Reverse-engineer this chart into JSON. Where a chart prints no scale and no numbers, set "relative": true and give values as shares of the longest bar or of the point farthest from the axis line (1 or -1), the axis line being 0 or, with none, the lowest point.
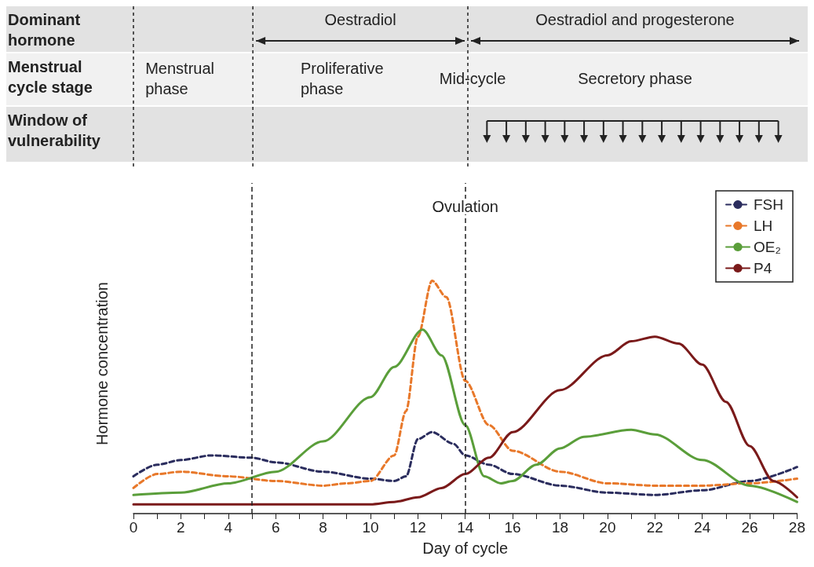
{
  "chart_data": {
    "type": "line",
    "relative": true,
    "xlabel": "Day of cycle",
    "ylabel": "Hormone concentration",
    "xlim": [
      0,
      28
    ],
    "xticks": [
      0,
      {
        "value": 1,
        "label": null
      },
      2,
      {
        "value": 3,
        "label": null
      },
      4,
      {
        "value": 5,
        "label": null
      },
      6,
      {
        "value": 7,
        "label": null
      },
      8,
      {
        "value": 9,
        "label": null
      },
      10,
      {
        "value": 11,
        "label": null
      },
      12,
      {
        "value": 13,
        "label": null
      },
      14,
      {
        "value": 15,
        "label": null
      },
      16,
      {
        "value": 17,
        "label": null
      },
      18,
      {
        "value": 19,
        "label": null
      },
      20,
      {
        "value": 21,
        "label": null
      },
      22,
      {
        "value": 23,
        "label": null
      },
      24,
      {
        "value": 25,
        "label": null
      },
      26,
      {
        "value": 27,
        "label": null
      },
      28
    ],
    "grid": false,
    "legend": "top right",
    "marker": "none",
    "ref_lines": [
      {
        "axis": "x",
        "value": 5,
        "label": null,
        "color": "#222222",
        "line_style": "dashed"
      },
      {
        "axis": "x",
        "value": 14,
        "label": "Ovulation",
        "color": "#222222",
        "line_style": "dashed"
      }
    ],
    "annotations": [
      "Dominant hormone",
      "Oestradiol",
      "Oestradiol and progesterone",
      "Menstrual cycle stage",
      "Menstrual phase",
      "Proliferative phase",
      "Mid-cycle",
      "Secretory phase",
      "Window of vulnerability"
    ],
    "series": [
      {
        "name": "FSH",
        "color": "#2b2d5e",
        "line_style": "dashed",
        "x": [
          0,
          1,
          2,
          3.3,
          5,
          6,
          8,
          10,
          11,
          11.5,
          12,
          12.6,
          13.5,
          14,
          15,
          16,
          18,
          20,
          22,
          24,
          26,
          28
        ],
        "values": [
          0.16,
          0.21,
          0.23,
          0.25,
          0.24,
          0.22,
          0.18,
          0.15,
          0.14,
          0.16,
          0.32,
          0.35,
          0.3,
          0.25,
          0.21,
          0.17,
          0.12,
          0.09,
          0.08,
          0.1,
          0.14,
          0.2
        ]
      },
      {
        "name": "LH",
        "color": "#e8782a",
        "line_style": "dashed",
        "x": [
          0,
          1,
          2,
          4,
          6,
          8,
          9,
          10,
          11,
          11.5,
          12,
          12.6,
          13.2,
          14,
          15,
          16,
          18,
          20,
          22,
          24,
          26,
          28
        ],
        "values": [
          0.11,
          0.17,
          0.18,
          0.16,
          0.14,
          0.12,
          0.13,
          0.14,
          0.25,
          0.44,
          0.76,
          1,
          0.93,
          0.57,
          0.38,
          0.27,
          0.18,
          0.13,
          0.12,
          0.12,
          0.13,
          0.15
        ]
      },
      {
        "name": "OE₂",
        "color": "#5a9e3a",
        "line_style": "solid",
        "x": [
          0,
          2,
          4,
          6,
          8,
          10,
          11,
          12.2,
          13,
          14,
          14.8,
          15.5,
          16,
          17,
          18,
          19,
          21,
          22,
          24,
          26,
          28
        ],
        "values": [
          0.08,
          0.09,
          0.13,
          0.18,
          0.31,
          0.5,
          0.63,
          0.79,
          0.68,
          0.38,
          0.16,
          0.13,
          0.14,
          0.21,
          0.28,
          0.33,
          0.36,
          0.34,
          0.23,
          0.12,
          0.05
        ]
      },
      {
        "name": "P4",
        "color": "#7a1a1a",
        "line_style": "solid",
        "x": [
          0,
          10,
          11,
          12,
          13,
          14,
          15,
          16,
          18,
          20,
          21,
          22,
          23,
          24,
          25,
          26,
          27,
          28
        ],
        "values": [
          0.04,
          0.04,
          0.05,
          0.07,
          0.11,
          0.17,
          0.24,
          0.35,
          0.53,
          0.68,
          0.74,
          0.76,
          0.73,
          0.64,
          0.48,
          0.29,
          0.14,
          0.07
        ]
      }
    ]
  }
}
